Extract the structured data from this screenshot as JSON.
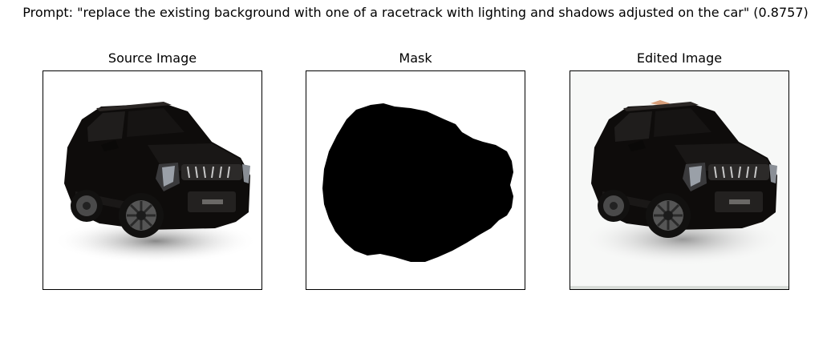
{
  "figure": {
    "suptitle": "Prompt: \"replace the existing background with one of a racetrack with lighting and shadows adjusted on the car\" (0.8757)",
    "panels": [
      {
        "title": "Source Image",
        "image_content": "black compact SUV on white background"
      },
      {
        "title": "Mask",
        "image_content": "black blob mask on white background"
      },
      {
        "title": "Edited Image",
        "image_content": "black compact SUV on white background with soft shadow"
      }
    ]
  }
}
